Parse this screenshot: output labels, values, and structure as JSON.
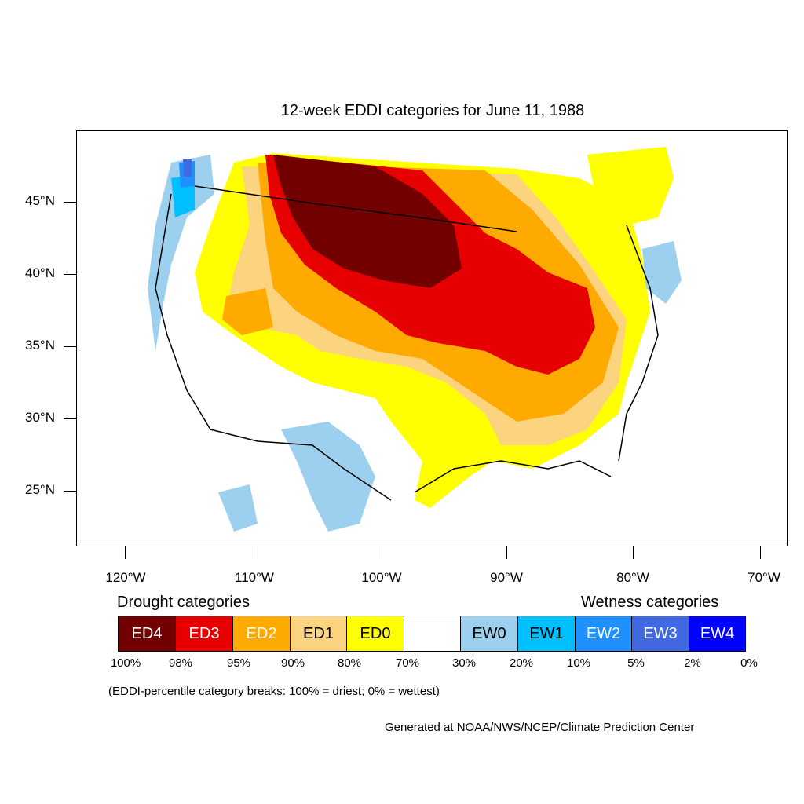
{
  "title": "12-week EDDI categories for June 11, 1988",
  "lat_labels": [
    "45°N",
    "40°N",
    "35°N",
    "30°N",
    "25°N"
  ],
  "lon_labels": [
    "120°W",
    "110°W",
    "100°W",
    "90°W",
    "80°W",
    "70°W"
  ],
  "legend": {
    "drought_heading": "Drought categories",
    "wetness_heading": "Wetness categories",
    "categories": [
      {
        "label": "ED4",
        "color": "#730000",
        "text_color": "#ffffff"
      },
      {
        "label": "ED3",
        "color": "#e60000",
        "text_color": "#ffffff"
      },
      {
        "label": "ED2",
        "color": "#ffaa00",
        "text_color": "#ffffff"
      },
      {
        "label": "ED1",
        "color": "#fcd37f",
        "text_color": "#000000"
      },
      {
        "label": "ED0",
        "color": "#ffff00",
        "text_color": "#000000"
      },
      {
        "label": "",
        "color": "#ffffff",
        "text_color": "#000000"
      },
      {
        "label": "EW0",
        "color": "#9dd0ef",
        "text_color": "#000000"
      },
      {
        "label": "EW1",
        "color": "#00bfff",
        "text_color": "#000000"
      },
      {
        "label": "EW2",
        "color": "#1e90ff",
        "text_color": "#ffffff"
      },
      {
        "label": "EW3",
        "color": "#4169e1",
        "text_color": "#ffffff"
      },
      {
        "label": "EW4",
        "color": "#0000ff",
        "text_color": "#ffffff"
      }
    ],
    "breaks": [
      "100%",
      "98%",
      "95%",
      "90%",
      "80%",
      "70%",
      "30%",
      "20%",
      "10%",
      "5%",
      "2%",
      "0%"
    ]
  },
  "note": "(EDDI-percentile category breaks: 100% = driest; 0% = wettest)",
  "credit": "Generated at NOAA/NWS/NCEP/Climate Prediction Center"
}
